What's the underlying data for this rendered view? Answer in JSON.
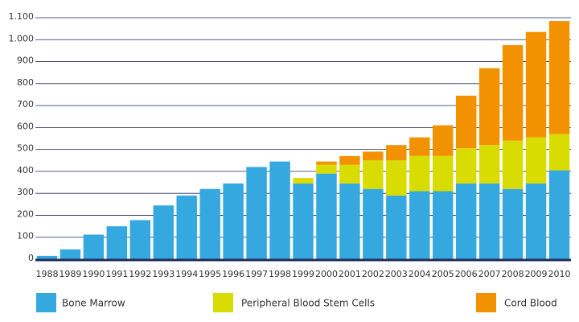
{
  "chart_data": {
    "type": "stacked-bar",
    "categories": [
      "1988",
      "1989",
      "1990",
      "1991",
      "1992",
      "1993",
      "1994",
      "1995",
      "1996",
      "1997",
      "1998",
      "1999",
      "2000",
      "2001",
      "2002",
      "2003",
      "2004",
      "2005",
      "2006",
      "2007",
      "2008",
      "2009",
      "2010"
    ],
    "series": [
      {
        "name": "Bone Marrow",
        "color": "#35a8e0",
        "values": [
          15,
          45,
          112,
          150,
          178,
          245,
          290,
          320,
          345,
          420,
          445,
          345,
          390,
          345,
          320,
          290,
          310,
          310,
          345,
          345,
          320,
          345,
          405
        ]
      },
      {
        "name": "Peripheral Blood Stem Cells",
        "color": "#d9dc00",
        "values": [
          null,
          null,
          null,
          null,
          null,
          null,
          null,
          null,
          null,
          null,
          null,
          25,
          40,
          85,
          130,
          160,
          160,
          160,
          160,
          175,
          220,
          210,
          165
        ]
      },
      {
        "name": "Cord Blood",
        "color": "#f39200",
        "values": [
          null,
          null,
          null,
          null,
          null,
          null,
          null,
          null,
          null,
          null,
          null,
          null,
          15,
          40,
          40,
          70,
          85,
          140,
          240,
          350,
          435,
          480,
          515
        ]
      }
    ],
    "ylim": [
      0,
      1100
    ],
    "yticks": [
      0,
      100,
      200,
      300,
      400,
      500,
      600,
      700,
      800,
      900,
      {
        "value": 1000,
        "label": "1.000"
      },
      {
        "value": 1100,
        "label": "1.100"
      }
    ],
    "grid": true
  }
}
